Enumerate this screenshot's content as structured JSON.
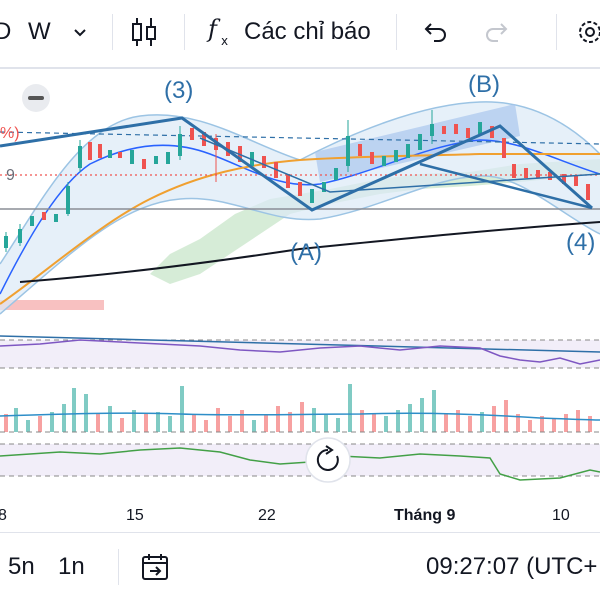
{
  "toolbar": {
    "timeframe_partial": "D",
    "interval": "W",
    "indicators_label": "Các chỉ báo",
    "icons": [
      "chevron-down-icon",
      "candlestick-icon",
      "fx-icon",
      "undo-icon",
      "redo-icon",
      "settings-icon"
    ]
  },
  "chart": {
    "wave_labels": {
      "w3": "(3)",
      "wB": "(B)",
      "wA": "(A)",
      "w4": "(4)"
    },
    "price_label_partial": "%)",
    "price_label_9": "9",
    "x_labels": {
      "d8": "8",
      "d15": "15",
      "d22": "22",
      "month9": "Tháng 9",
      "d10": "10"
    },
    "colors": {
      "up": "#26a69a",
      "down": "#ef5350",
      "wave": "#2e6fa7",
      "volume_up": "#80cbc4",
      "volume_down": "#f7a1a1",
      "rsi": "#7e57c2",
      "osc": "#43a047"
    }
  },
  "bottom": {
    "range_5n": "5n",
    "range_1n": "1n",
    "time": "09:27:07 (UTC+",
    "icons": [
      "goto-date-icon"
    ]
  }
}
